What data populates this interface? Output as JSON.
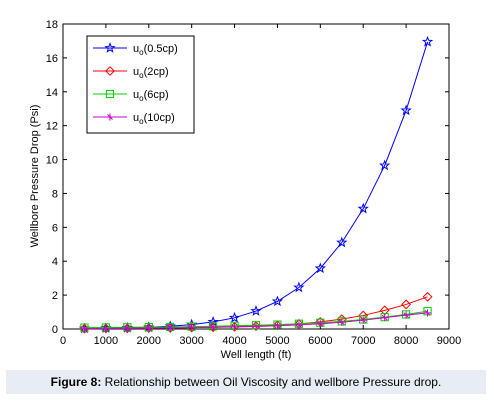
{
  "chart_data": {
    "type": "line",
    "xlabel": "Well length (ft)",
    "ylabel": "Wellbore Pressure Drop (Psi)",
    "xlim": [
      0,
      9000
    ],
    "ylim": [
      0,
      18
    ],
    "xticks": [
      "0",
      "1000",
      "2000",
      "3000",
      "4000",
      "5000",
      "6000",
      "7000",
      "8000",
      "9000"
    ],
    "yticks": [
      "0",
      "2",
      "4",
      "6",
      "8",
      "10",
      "12",
      "14",
      "16",
      "18"
    ],
    "legend_position": "top-left",
    "x": [
      500,
      1000,
      1500,
      2000,
      2500,
      3000,
      3500,
      4000,
      4500,
      5000,
      5500,
      6000,
      6500,
      7000,
      7500,
      8000,
      8500
    ],
    "series": [
      {
        "name": "uo(0.5cp)",
        "legend_base": "u",
        "legend_sub": "o",
        "legend_rest": "(0.5cp)",
        "color": "#0000ff",
        "marker": "star",
        "values": [
          0.03,
          0.05,
          0.07,
          0.1,
          0.16,
          0.26,
          0.42,
          0.66,
          1.06,
          1.63,
          2.45,
          3.58,
          5.1,
          7.1,
          9.65,
          12.9,
          16.95
        ]
      },
      {
        "name": "uo(2cp)",
        "legend_base": "u",
        "legend_sub": "o",
        "legend_rest": "(2cp)",
        "color": "#ff0000",
        "marker": "diamond",
        "values": [
          0.02,
          0.03,
          0.04,
          0.05,
          0.06,
          0.08,
          0.1,
          0.13,
          0.17,
          0.22,
          0.3,
          0.42,
          0.58,
          0.8,
          1.1,
          1.45,
          1.9
        ]
      },
      {
        "name": "uo(6cp)",
        "legend_base": "u",
        "legend_sub": "o",
        "legend_rest": "(6cp)",
        "color": "#00cc00",
        "marker": "square",
        "values": [
          0.08,
          0.09,
          0.1,
          0.11,
          0.12,
          0.14,
          0.16,
          0.19,
          0.22,
          0.26,
          0.31,
          0.37,
          0.45,
          0.56,
          0.7,
          0.86,
          1.05
        ]
      },
      {
        "name": "uo(10cp)",
        "legend_base": "u",
        "legend_sub": "o",
        "legend_rest": "(10cp)",
        "color": "#cc00cc",
        "marker": "cross",
        "values": [
          0.02,
          0.03,
          0.04,
          0.05,
          0.06,
          0.08,
          0.1,
          0.12,
          0.15,
          0.19,
          0.24,
          0.31,
          0.4,
          0.52,
          0.67,
          0.82,
          0.95
        ]
      }
    ]
  },
  "caption": {
    "label": "Figure 8:",
    "text": " Relationship between Oil Viscosity and wellbore Pressure drop."
  }
}
